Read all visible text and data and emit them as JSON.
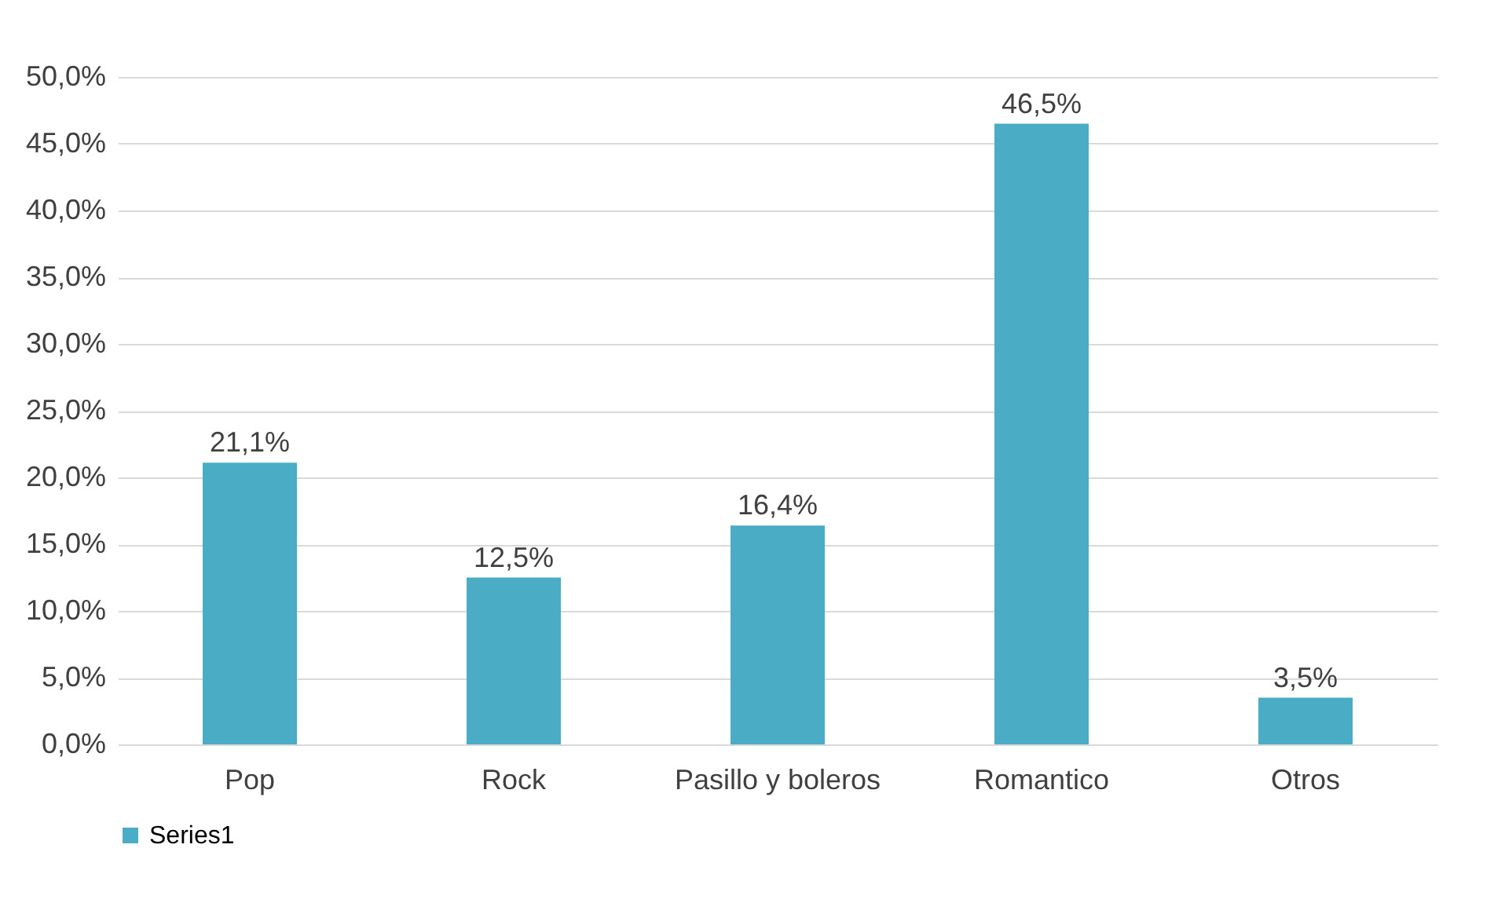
{
  "chart_data": {
    "type": "bar",
    "categories": [
      "Pop",
      "Rock",
      "Pasillo y boleros",
      "Romantico",
      "Otros"
    ],
    "series": [
      {
        "name": "Series1",
        "color": "#4bacc6",
        "values": [
          21.1,
          12.5,
          16.4,
          46.5,
          3.5
        ],
        "value_labels": [
          "21,1%",
          "12,5%",
          "16,4%",
          "46,5%",
          "3,5%"
        ]
      }
    ],
    "ylim": [
      0,
      50
    ],
    "yticks": [
      {
        "value": 0,
        "label": "0,0%"
      },
      {
        "value": 5,
        "label": "5,0%"
      },
      {
        "value": 10,
        "label": "10,0%"
      },
      {
        "value": 15,
        "label": "15,0%"
      },
      {
        "value": 20,
        "label": "20,0%"
      },
      {
        "value": 25,
        "label": "25,0%"
      },
      {
        "value": 30,
        "label": "30,0%"
      },
      {
        "value": 35,
        "label": "35,0%"
      },
      {
        "value": 40,
        "label": "40,0%"
      },
      {
        "value": 45,
        "label": "45,0%"
      },
      {
        "value": 50,
        "label": "50,0%"
      }
    ],
    "grid": "y",
    "legend": "bottom"
  }
}
